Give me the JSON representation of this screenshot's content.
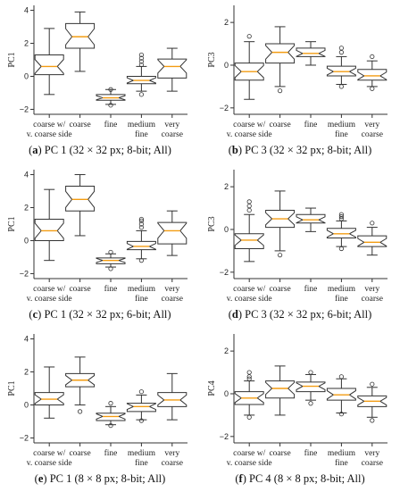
{
  "colors": {
    "box_fill": "#ffffff",
    "box_stroke": "#333333",
    "median": "#f39c12",
    "text": "#222222"
  },
  "chart_data": [
    {
      "type": "box",
      "caption_label": "(a)",
      "caption_text": "PC 1 (32 × 32 px; 8-bit; All)",
      "ylabel": "PC1",
      "ylim": [
        -2.3,
        4.3
      ],
      "yticks": [
        -2,
        0,
        2,
        4
      ],
      "categories": [
        "coarse w/\nv. coarse side",
        "coarse",
        "fine",
        "medium\nfine",
        "very\ncoarse"
      ],
      "boxes": [
        {
          "whislo": -1.1,
          "q1": 0.1,
          "med": 0.6,
          "q3": 1.3,
          "whishi": 2.9,
          "fliers": []
        },
        {
          "whislo": 0.3,
          "q1": 1.7,
          "med": 2.4,
          "q3": 3.2,
          "whishi": 3.9,
          "fliers": []
        },
        {
          "whislo": -1.7,
          "q1": -1.45,
          "med": -1.3,
          "q3": -1.1,
          "whishi": -0.8,
          "fliers": [
            -0.8,
            -1.75
          ]
        },
        {
          "whislo": -0.9,
          "q1": -0.45,
          "med": -0.25,
          "q3": 0.0,
          "whishi": 0.6,
          "fliers": [
            0.7,
            0.9,
            1.1,
            1.3,
            -1.1
          ]
        },
        {
          "whislo": -0.9,
          "q1": -0.1,
          "med": 0.6,
          "q3": 1.05,
          "whishi": 1.7,
          "fliers": []
        }
      ]
    },
    {
      "type": "box",
      "caption_label": "(b)",
      "caption_text": "PC 3 (32 × 32 px; 8-bit; All)",
      "ylabel": "PC3",
      "ylim": [
        -2.3,
        2.8
      ],
      "yticks": [
        -2,
        0,
        2
      ],
      "categories": [
        "coarse w/\nv. coarse side",
        "coarse",
        "fine",
        "medium\nfine",
        "very\ncoarse"
      ],
      "boxes": [
        {
          "whislo": -1.6,
          "q1": -0.7,
          "med": -0.3,
          "q3": 0.1,
          "whishi": 1.1,
          "fliers": [
            1.35
          ]
        },
        {
          "whislo": -1.0,
          "q1": 0.1,
          "med": 0.6,
          "q3": 1.0,
          "whishi": 1.8,
          "fliers": [
            -1.2
          ]
        },
        {
          "whislo": 0.0,
          "q1": 0.4,
          "med": 0.55,
          "q3": 0.8,
          "whishi": 1.1,
          "fliers": []
        },
        {
          "whislo": -0.9,
          "q1": -0.5,
          "med": -0.3,
          "q3": -0.05,
          "whishi": 0.4,
          "fliers": [
            0.6,
            0.8,
            -1.0
          ]
        },
        {
          "whislo": -1.0,
          "q1": -0.7,
          "med": -0.5,
          "q3": -0.2,
          "whishi": 0.2,
          "fliers": [
            0.4,
            -1.1
          ]
        }
      ]
    },
    {
      "type": "box",
      "caption_label": "(c)",
      "caption_text": "PC 1 (32 × 32 px; 6-bit; All)",
      "ylabel": "PC1",
      "ylim": [
        -2.3,
        4.3
      ],
      "yticks": [
        -2,
        0,
        2,
        4
      ],
      "categories": [
        "coarse w/\nv. coarse side",
        "coarse",
        "fine",
        "medium\nfine",
        "very\ncoarse"
      ],
      "boxes": [
        {
          "whislo": -1.2,
          "q1": 0.0,
          "med": 0.6,
          "q3": 1.3,
          "whishi": 3.1,
          "fliers": []
        },
        {
          "whislo": 0.3,
          "q1": 1.8,
          "med": 2.5,
          "q3": 3.3,
          "whishi": 4.0,
          "fliers": []
        },
        {
          "whislo": -1.6,
          "q1": -1.4,
          "med": -1.2,
          "q3": -1.05,
          "whishi": -0.8,
          "fliers": [
            -0.7,
            -1.7
          ]
        },
        {
          "whislo": -1.1,
          "q1": -0.55,
          "med": -0.35,
          "q3": -0.05,
          "whishi": 0.6,
          "fliers": [
            0.8,
            1.0,
            1.2,
            1.3,
            -1.2
          ]
        },
        {
          "whislo": -0.9,
          "q1": -0.2,
          "med": 0.6,
          "q3": 1.1,
          "whishi": 1.8,
          "fliers": []
        }
      ]
    },
    {
      "type": "box",
      "caption_label": "(d)",
      "caption_text": "PC 3 (32 × 32 px; 6-bit; All)",
      "ylabel": "PC3",
      "ylim": [
        -2.3,
        2.8
      ],
      "yticks": [
        -2,
        0,
        2
      ],
      "categories": [
        "coarse w/\nv. coarse side",
        "coarse",
        "fine",
        "medium\nfine",
        "very\ncoarse"
      ],
      "boxes": [
        {
          "whislo": -1.5,
          "q1": -0.9,
          "med": -0.5,
          "q3": -0.2,
          "whishi": 0.7,
          "fliers": [
            0.9,
            1.1,
            1.3
          ]
        },
        {
          "whislo": -1.0,
          "q1": 0.1,
          "med": 0.5,
          "q3": 0.9,
          "whishi": 1.8,
          "fliers": [
            -1.2
          ]
        },
        {
          "whislo": -0.1,
          "q1": 0.3,
          "med": 0.45,
          "q3": 0.7,
          "whishi": 1.0,
          "fliers": []
        },
        {
          "whislo": -0.8,
          "q1": -0.4,
          "med": -0.2,
          "q3": 0.05,
          "whishi": 0.4,
          "fliers": [
            0.5,
            0.6,
            0.7,
            -0.9
          ]
        },
        {
          "whislo": -1.2,
          "q1": -0.8,
          "med": -0.6,
          "q3": -0.3,
          "whishi": 0.1,
          "fliers": [
            0.3
          ]
        }
      ]
    },
    {
      "type": "box",
      "caption_label": "(e)",
      "caption_text": "PC 1 (8 × 8 px; 8-bit; All)",
      "ylabel": "PC1",
      "ylim": [
        -2.3,
        4.3
      ],
      "yticks": [
        -2,
        0,
        2,
        4
      ],
      "categories": [
        "coarse w/\nv. coarse side",
        "coarse",
        "fine",
        "medium\nfine",
        "very\ncoarse"
      ],
      "boxes": [
        {
          "whislo": -0.8,
          "q1": 0.0,
          "med": 0.35,
          "q3": 0.75,
          "whishi": 2.3,
          "fliers": []
        },
        {
          "whislo": 0.0,
          "q1": 1.1,
          "med": 1.5,
          "q3": 1.9,
          "whishi": 2.9,
          "fliers": [
            -0.4
          ]
        },
        {
          "whislo": -1.2,
          "q1": -0.95,
          "med": -0.7,
          "q3": -0.5,
          "whishi": -0.1,
          "fliers": [
            0.1,
            -1.25
          ]
        },
        {
          "whislo": -0.9,
          "q1": -0.4,
          "med": -0.1,
          "q3": 0.1,
          "whishi": 0.6,
          "fliers": [
            0.8,
            -0.95
          ]
        },
        {
          "whislo": -0.9,
          "q1": -0.1,
          "med": 0.3,
          "q3": 0.75,
          "whishi": 1.9,
          "fliers": []
        }
      ]
    },
    {
      "type": "box",
      "caption_label": "(f)",
      "caption_text": "PC 4 (8 × 8 px; 8-bit; All)",
      "ylabel": "PC4",
      "ylim": [
        -2.3,
        2.8
      ],
      "yticks": [
        -2,
        0,
        2
      ],
      "categories": [
        "coarse w/\nv. coarse side",
        "coarse",
        "fine",
        "medium\nfine",
        "very\ncoarse"
      ],
      "boxes": [
        {
          "whislo": -1.0,
          "q1": -0.5,
          "med": -0.2,
          "q3": 0.1,
          "whishi": 0.6,
          "fliers": [
            0.7,
            0.8,
            1.0,
            -1.1
          ]
        },
        {
          "whislo": -1.0,
          "q1": -0.2,
          "med": 0.25,
          "q3": 0.6,
          "whishi": 1.3,
          "fliers": []
        },
        {
          "whislo": -0.3,
          "q1": 0.1,
          "med": 0.35,
          "q3": 0.55,
          "whishi": 0.9,
          "fliers": [
            1.0,
            -0.45
          ]
        },
        {
          "whislo": -0.9,
          "q1": -0.3,
          "med": -0.05,
          "q3": 0.25,
          "whishi": 0.7,
          "fliers": [
            0.8,
            -0.95
          ]
        },
        {
          "whislo": -1.1,
          "q1": -0.6,
          "med": -0.35,
          "q3": -0.1,
          "whishi": 0.3,
          "fliers": [
            0.45,
            -1.25
          ]
        }
      ]
    }
  ]
}
